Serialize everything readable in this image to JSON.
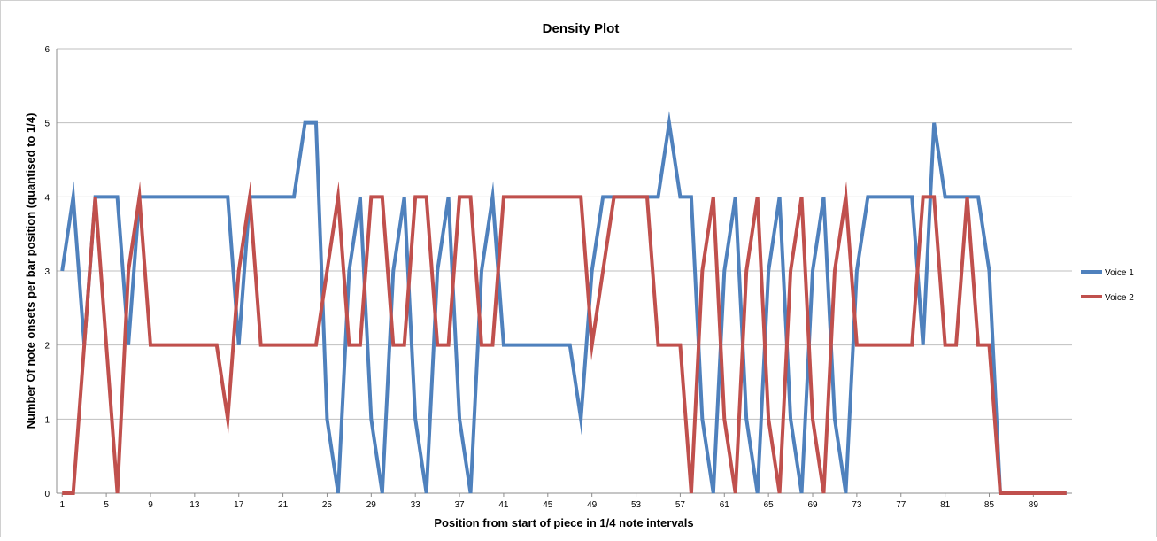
{
  "chart_data": {
    "type": "line",
    "title": "Density Plot",
    "xlabel": "Position from start of piece in 1/4 note intervals",
    "ylabel": "Number Of note onsets per bar position (quantised to 1/4)",
    "x_range": [
      1,
      92
    ],
    "ylim": [
      0,
      6
    ],
    "y_ticks": [
      0,
      1,
      2,
      3,
      4,
      5,
      6
    ],
    "x_ticks": [
      1,
      5,
      9,
      13,
      17,
      21,
      25,
      29,
      33,
      37,
      41,
      45,
      49,
      53,
      57,
      61,
      65,
      69,
      73,
      77,
      81,
      85,
      89
    ],
    "grid": "horizontal",
    "legend_position": "right",
    "series": [
      {
        "name": "Voice 1",
        "color": "#4f81bd",
        "values": [
          3,
          4,
          2,
          4,
          4,
          4,
          2,
          4,
          4,
          4,
          4,
          4,
          4,
          4,
          4,
          4,
          2,
          4,
          4,
          4,
          4,
          4,
          5,
          5,
          1,
          0,
          3,
          4,
          1,
          0,
          3,
          4,
          1,
          0,
          3,
          4,
          1,
          0,
          3,
          4,
          2,
          2,
          2,
          2,
          2,
          2,
          2,
          1,
          3,
          4,
          4,
          4,
          4,
          4,
          4,
          5,
          4,
          4,
          1,
          0,
          3,
          4,
          1,
          0,
          3,
          4,
          1,
          0,
          3,
          4,
          1,
          0,
          3,
          4,
          4,
          4,
          4,
          4,
          2,
          5,
          4,
          4,
          4,
          4,
          3,
          0,
          0,
          0,
          0,
          0,
          0,
          0
        ]
      },
      {
        "name": "Voice 2",
        "color": "#c0504d",
        "values": [
          0,
          0,
          2,
          4,
          2,
          0,
          3,
          4,
          2,
          2,
          2,
          2,
          2,
          2,
          2,
          1,
          3,
          4,
          2,
          2,
          2,
          2,
          2,
          2,
          3,
          4,
          2,
          2,
          4,
          4,
          2,
          2,
          4,
          4,
          2,
          2,
          4,
          4,
          2,
          2,
          4,
          4,
          4,
          4,
          4,
          4,
          4,
          4,
          2,
          3,
          4,
          4,
          4,
          4,
          2,
          2,
          2,
          0,
          3,
          4,
          1,
          0,
          3,
          4,
          1,
          0,
          3,
          4,
          1,
          0,
          3,
          4,
          2,
          2,
          2,
          2,
          2,
          2,
          4,
          4,
          2,
          2,
          4,
          2,
          2,
          0,
          0,
          0,
          0,
          0,
          0,
          0
        ]
      }
    ]
  }
}
